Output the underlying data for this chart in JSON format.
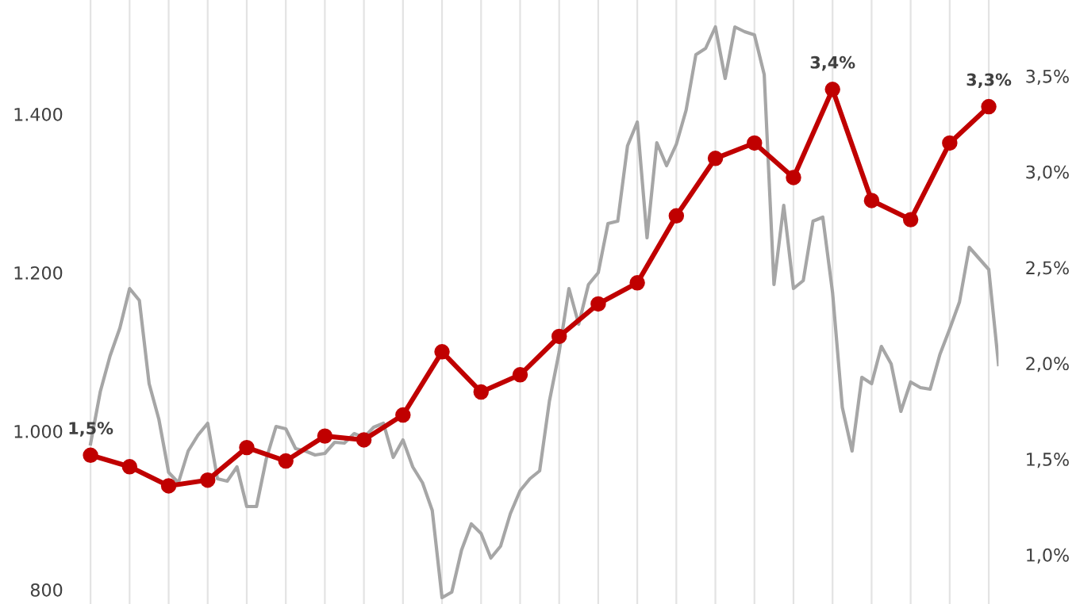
{
  "chart_data": {
    "type": "line",
    "categories": [
      null,
      null,
      null,
      null,
      null,
      null,
      null,
      null,
      null,
      null,
      null,
      null,
      null,
      null,
      null,
      null,
      null,
      null,
      null,
      null,
      null,
      null,
      null,
      null,
      null,
      null,
      null,
      null,
      null,
      null,
      null,
      null,
      null,
      null,
      null,
      null,
      null,
      null,
      null,
      null,
      null,
      null,
      null,
      null,
      null,
      null,
      null,
      null,
      null,
      null,
      null,
      null,
      null,
      null,
      null,
      null,
      null,
      null,
      null,
      null,
      null,
      null,
      null,
      null,
      null,
      null,
      null,
      null,
      null,
      null,
      null,
      null,
      null,
      null,
      null,
      null,
      null,
      null,
      null,
      null,
      null,
      null,
      null,
      null,
      null,
      null,
      null,
      null,
      null,
      null,
      null,
      null,
      null,
      null
    ],
    "series": [
      {
        "color": "#a6a6a6",
        "marker": "none",
        "values": [
          984,
          1050,
          1095,
          1130,
          1180,
          1165,
          1060,
          1015,
          948,
          935,
          975,
          995,
          1010,
          940,
          937,
          955,
          905,
          905,
          965,
          1006,
          1003,
          978,
          975,
          970,
          972,
          986,
          985,
          997,
          992,
          1005,
          1010,
          967,
          989,
          955,
          935,
          900,
          790,
          797,
          850,
          883,
          871,
          840,
          855,
          896,
          925,
          940,
          950,
          1038,
          1100,
          1180,
          1135,
          1185,
          1200,
          1262,
          1265,
          1360,
          1390,
          1244,
          1364,
          1335,
          1362,
          1405,
          1475,
          1483,
          1510,
          1445,
          1510,
          1504,
          1500,
          1450,
          1185,
          1285,
          1180,
          1190,
          1265,
          1270,
          1175,
          1030,
          975,
          1068,
          1060,
          1107,
          1085,
          1025,
          1062,
          1055,
          1053,
          1097,
          1129,
          1163,
          1232,
          1218,
          1204,
          1084
        ]
      },
      {
        "color": "#c00000",
        "axis": "y2",
        "marker": "circle",
        "values": [
          1.52,
          null,
          null,
          null,
          1.46,
          null,
          null,
          null,
          1.36,
          null,
          null,
          null,
          1.39,
          null,
          null,
          null,
          1.56,
          null,
          null,
          null,
          1.49,
          null,
          null,
          null,
          1.62,
          null,
          null,
          null,
          1.6,
          null,
          null,
          null,
          1.73,
          null,
          null,
          null,
          2.06,
          null,
          null,
          null,
          1.85,
          null,
          null,
          null,
          1.94,
          null,
          null,
          null,
          2.14,
          null,
          null,
          null,
          2.31,
          null,
          null,
          null,
          2.42,
          null,
          null,
          null,
          2.77,
          null,
          null,
          null,
          3.07,
          null,
          null,
          null,
          3.15,
          null,
          null,
          null,
          2.97,
          null,
          null,
          null,
          3.43,
          null,
          null,
          null,
          2.85,
          null,
          null,
          null,
          2.75,
          null,
          null,
          null,
          3.15,
          null,
          null,
          null,
          3.34,
          null
        ],
        "value_labels": [
          "1,5%",
          null,
          null,
          null,
          null,
          null,
          null,
          null,
          null,
          null,
          null,
          null,
          null,
          null,
          null,
          null,
          null,
          null,
          null,
          null,
          null,
          null,
          null,
          null,
          null,
          null,
          null,
          null,
          null,
          null,
          null,
          null,
          null,
          null,
          null,
          null,
          null,
          null,
          null,
          null,
          null,
          null,
          null,
          null,
          null,
          null,
          null,
          null,
          null,
          null,
          null,
          null,
          null,
          null,
          null,
          null,
          null,
          null,
          null,
          null,
          null,
          null,
          null,
          null,
          null,
          null,
          null,
          null,
          null,
          null,
          null,
          null,
          null,
          null,
          null,
          null,
          "3,4%",
          null,
          null,
          null,
          null,
          null,
          null,
          null,
          null,
          null,
          null,
          null,
          null,
          null,
          null,
          null,
          "3,3%",
          null
        ]
      }
    ],
    "ylim": [
      782,
      1544
    ],
    "yticks": [
      800,
      {
        "value": 1000,
        "label": "1.000"
      },
      {
        "value": 1200,
        "label": "1.200"
      },
      {
        "value": 1400,
        "label": "1.400"
      }
    ],
    "y2lim": [
      0.743,
      3.897
    ],
    "y2ticks": [
      {
        "value": 1.0,
        "label": "1,0%"
      },
      {
        "value": 1.5,
        "label": "1,5%"
      },
      {
        "value": 2.0,
        "label": "2,0%"
      },
      {
        "value": 2.5,
        "label": "2,5%"
      },
      {
        "value": 3.0,
        "label": "3,0%"
      },
      {
        "value": 3.5,
        "label": "3,5%"
      }
    ],
    "grid": "x",
    "legend": false
  }
}
